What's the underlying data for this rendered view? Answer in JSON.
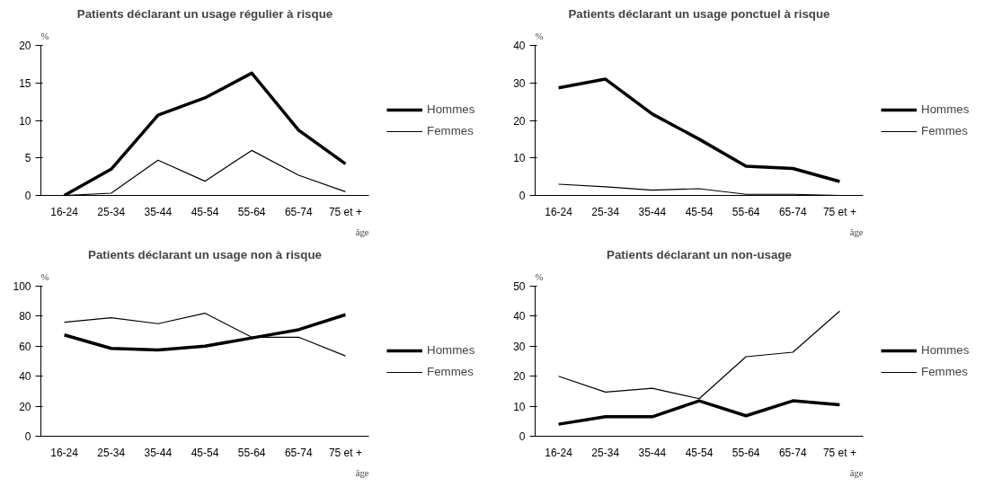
{
  "chart_data": [
    {
      "type": "line",
      "title": "Patients déclarant un usage régulier à risque",
      "ylabel": "%",
      "xlabel": "âge",
      "categories": [
        "16-24",
        "25-34",
        "35-44",
        "45-54",
        "55-64",
        "65-74",
        "75 et +"
      ],
      "ylim": [
        0,
        20
      ],
      "yticks": [
        0,
        5,
        10,
        15,
        20
      ],
      "grid": false,
      "legend": "right",
      "series": [
        {
          "name": "Hommes",
          "color": "#000000",
          "values": [
            0,
            3.5,
            10.7,
            13,
            16.3,
            8.7,
            4.2
          ]
        },
        {
          "name": "Femmes",
          "color": "#000000",
          "values": [
            0,
            0.3,
            4.7,
            1.9,
            6,
            2.7,
            0.5
          ]
        }
      ]
    },
    {
      "type": "line",
      "title": "Patients déclarant un usage ponctuel à risque",
      "ylabel": "%",
      "xlabel": "âge",
      "categories": [
        "16-24",
        "25-34",
        "35-44",
        "45-54",
        "55-64",
        "65-74",
        "75 et +"
      ],
      "ylim": [
        0,
        40
      ],
      "yticks": [
        0,
        10,
        20,
        30,
        40
      ],
      "grid": false,
      "legend": "right",
      "series": [
        {
          "name": "Hommes",
          "color": "#000000",
          "values": [
            28.7,
            31,
            21.7,
            15,
            7.8,
            7.2,
            3.7
          ]
        },
        {
          "name": "Femmes",
          "color": "#000000",
          "values": [
            3,
            2.3,
            1.4,
            1.8,
            0.3,
            0.3,
            0
          ]
        }
      ]
    },
    {
      "type": "line",
      "title": "Patients déclarant un usage non à risque",
      "ylabel": "%",
      "xlabel": "âge",
      "categories": [
        "16-24",
        "25-34",
        "35-44",
        "45-54",
        "55-64",
        "65-74",
        "75 et +"
      ],
      "ylim": [
        0,
        100
      ],
      "yticks": [
        0,
        20,
        40,
        60,
        80,
        100
      ],
      "grid": false,
      "legend": "right",
      "series": [
        {
          "name": "Hommes",
          "color": "#000000",
          "values": [
            67.5,
            58.5,
            57.5,
            60,
            65.5,
            71,
            81
          ]
        },
        {
          "name": "Femmes",
          "color": "#000000",
          "values": [
            76,
            79,
            75,
            82,
            66,
            66,
            53.5
          ]
        }
      ]
    },
    {
      "type": "line",
      "title": "Patients déclarant un non-usage",
      "ylabel": "%",
      "xlabel": "âge",
      "categories": [
        "16-24",
        "25-34",
        "35-44",
        "45-54",
        "55-64",
        "65-74",
        "75 et +"
      ],
      "ylim": [
        0,
        50
      ],
      "yticks": [
        0,
        10,
        20,
        30,
        40,
        50
      ],
      "grid": false,
      "legend": "right",
      "series": [
        {
          "name": "Hommes",
          "color": "#000000",
          "values": [
            4,
            6.5,
            6.5,
            11.8,
            6.8,
            11.8,
            10.5
          ]
        },
        {
          "name": "Femmes",
          "color": "#000000",
          "values": [
            20,
            14.7,
            16,
            12.5,
            26.5,
            28,
            41.7
          ]
        }
      ]
    }
  ]
}
